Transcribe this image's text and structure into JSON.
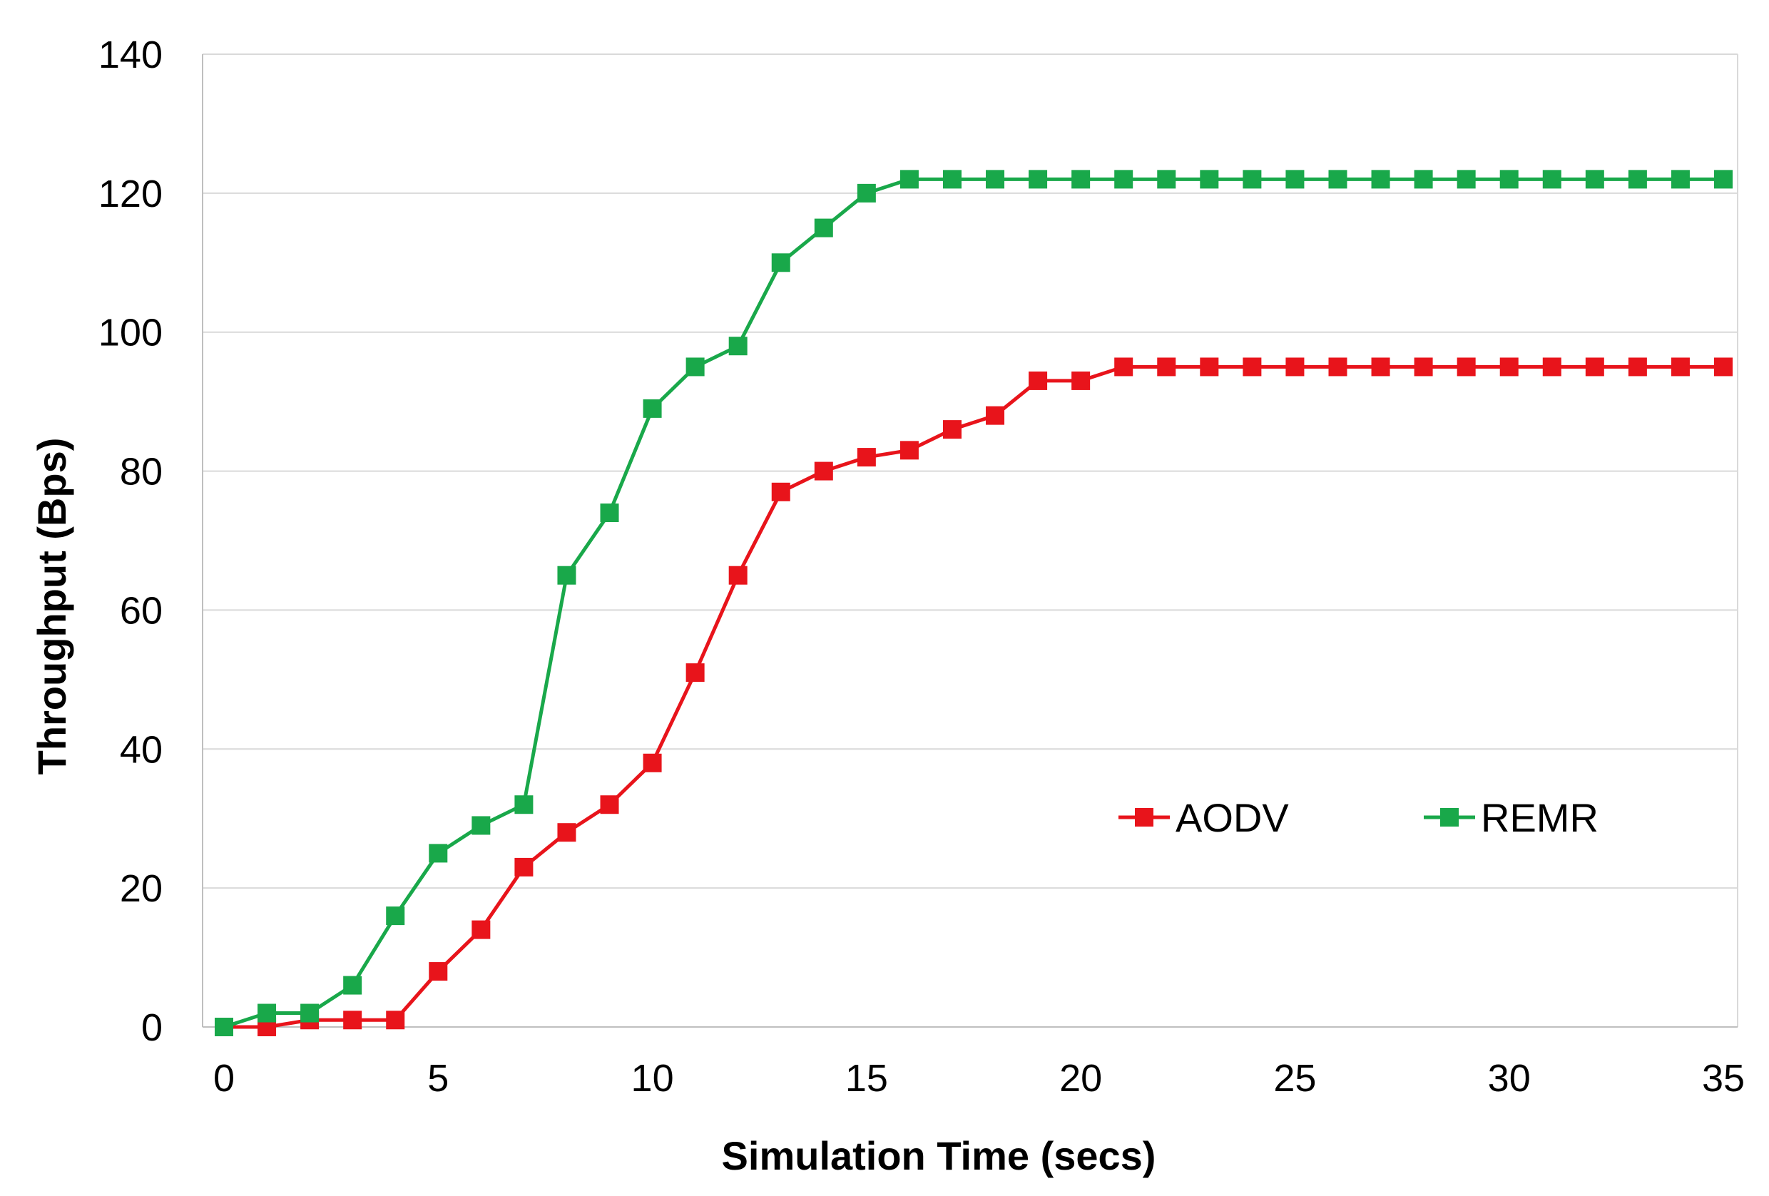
{
  "chart_data": {
    "type": "line",
    "title": "",
    "xlabel": "Simulation Time (secs)",
    "ylabel": "Throughput (Bps)",
    "xlim": [
      0,
      35
    ],
    "ylim": [
      0,
      140
    ],
    "xticks": [
      0,
      5,
      10,
      15,
      20,
      25,
      30,
      35
    ],
    "yticks": [
      0,
      20,
      40,
      60,
      80,
      100,
      120,
      140
    ],
    "grid": true,
    "legend_position": "lower-right",
    "x": [
      0,
      1,
      2,
      3,
      4,
      5,
      6,
      7,
      8,
      9,
      10,
      11,
      12,
      13,
      14,
      15,
      16,
      17,
      18,
      19,
      20,
      21,
      22,
      23,
      24,
      25,
      26,
      27,
      28,
      29,
      30,
      31,
      32,
      33,
      34,
      35
    ],
    "series": [
      {
        "name": "AODV",
        "color": "#e8141b",
        "marker": "square",
        "values": [
          0,
          0,
          1,
          1,
          1,
          8,
          14,
          23,
          28,
          32,
          38,
          51,
          65,
          77,
          80,
          82,
          83,
          86,
          88,
          93,
          93,
          95,
          95,
          95,
          95,
          95,
          95,
          95,
          95,
          95,
          95,
          95,
          95,
          95,
          95,
          95
        ]
      },
      {
        "name": "REMR",
        "color": "#19a84a",
        "marker": "square",
        "values": [
          0,
          2,
          2,
          6,
          16,
          25,
          29,
          32,
          65,
          74,
          89,
          95,
          98,
          110,
          115,
          120,
          122,
          122,
          122,
          122,
          122,
          122,
          122,
          122,
          122,
          122,
          122,
          122,
          122,
          122,
          122,
          122,
          122,
          122,
          122,
          122
        ]
      }
    ]
  },
  "colors": {
    "background": "#ffffff",
    "grid": "#d9d9d9",
    "axis": "#bfbfbf"
  }
}
